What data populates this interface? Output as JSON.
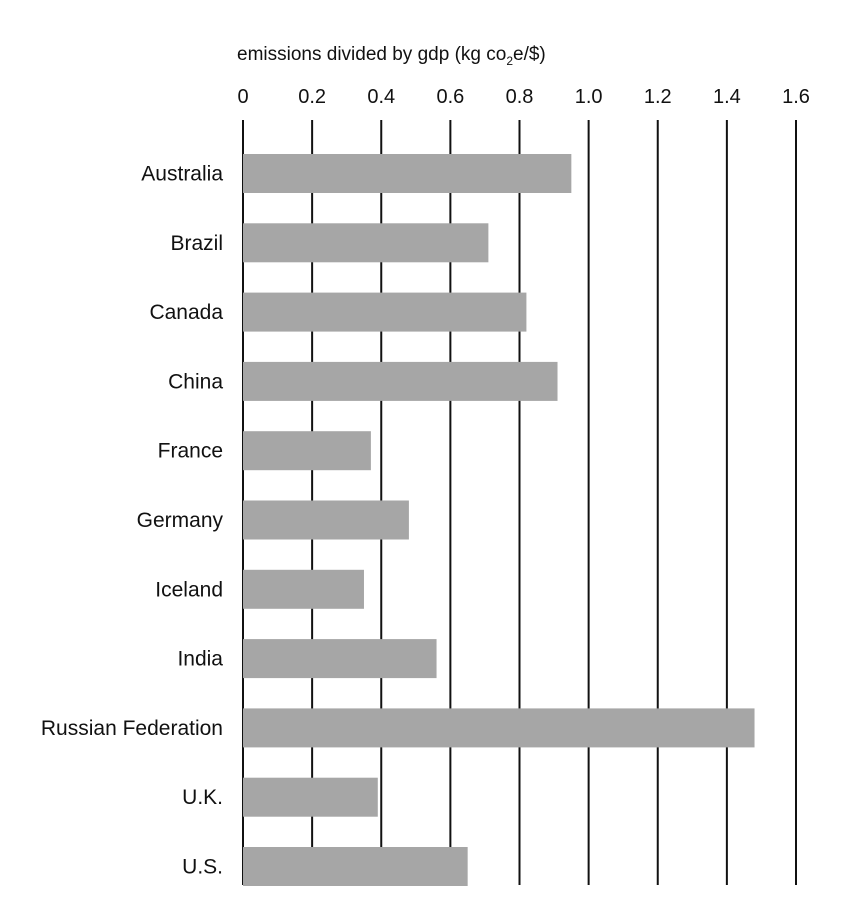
{
  "chart_data": {
    "type": "bar",
    "orientation": "horizontal",
    "xlabel": "emissions divided by gdp (kg co2e/$)",
    "xlabel_parts": {
      "before": "emissions divided by gdp (kg co",
      "subscript": "2",
      "after": "e/$)"
    },
    "xlim": [
      0,
      1.6
    ],
    "ticks": [
      0,
      0.2,
      0.4,
      0.6,
      0.8,
      1.0,
      1.2,
      1.4,
      1.6
    ],
    "tick_labels": [
      "0",
      "0.2",
      "0.4",
      "0.6",
      "0.8",
      "1.0",
      "1.2",
      "1.4",
      "1.6"
    ],
    "axis_position": "top",
    "grid": true,
    "categories": [
      "Australia",
      "Brazil",
      "Canada",
      "China",
      "France",
      "Germany",
      "Iceland",
      "India",
      "Russian Federation",
      "U.K.",
      "U.S."
    ],
    "values": [
      0.95,
      0.71,
      0.82,
      0.91,
      0.37,
      0.48,
      0.35,
      0.56,
      1.48,
      0.39,
      0.65
    ],
    "colors": {
      "bar": "#a6a6a6",
      "grid": "#111111"
    }
  }
}
